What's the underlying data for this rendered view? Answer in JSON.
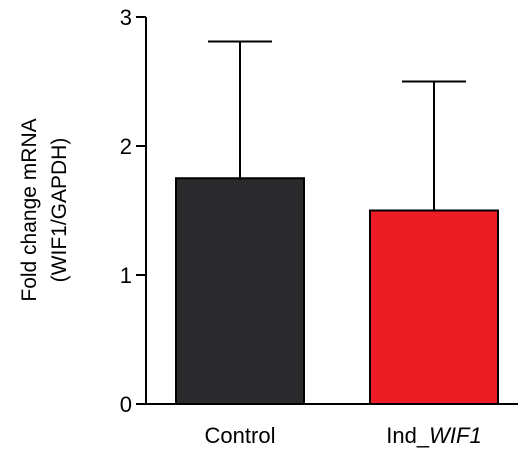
{
  "chart_data": {
    "type": "bar",
    "title": "",
    "xlabel": "",
    "ylabel_lines": [
      "Fold change mRNA",
      "(WIF1/GAPDH)"
    ],
    "categories": [
      "Control",
      "Ind_WIF1"
    ],
    "category_labels": [
      {
        "prefix": "Control",
        "italic": ""
      },
      {
        "prefix": "Ind_",
        "italic": "WIF1"
      }
    ],
    "values": [
      1.75,
      1.5
    ],
    "error_upper": [
      2.81,
      2.5
    ],
    "ylim": [
      0,
      3
    ],
    "yticks": [
      "0",
      "1",
      "2",
      "3"
    ],
    "grid": false,
    "legend": "none",
    "colors": {
      "bars": [
        "#2b2b2d",
        "#ee1c25"
      ],
      "axis": "#000000",
      "bar_edge": "#000000"
    }
  }
}
